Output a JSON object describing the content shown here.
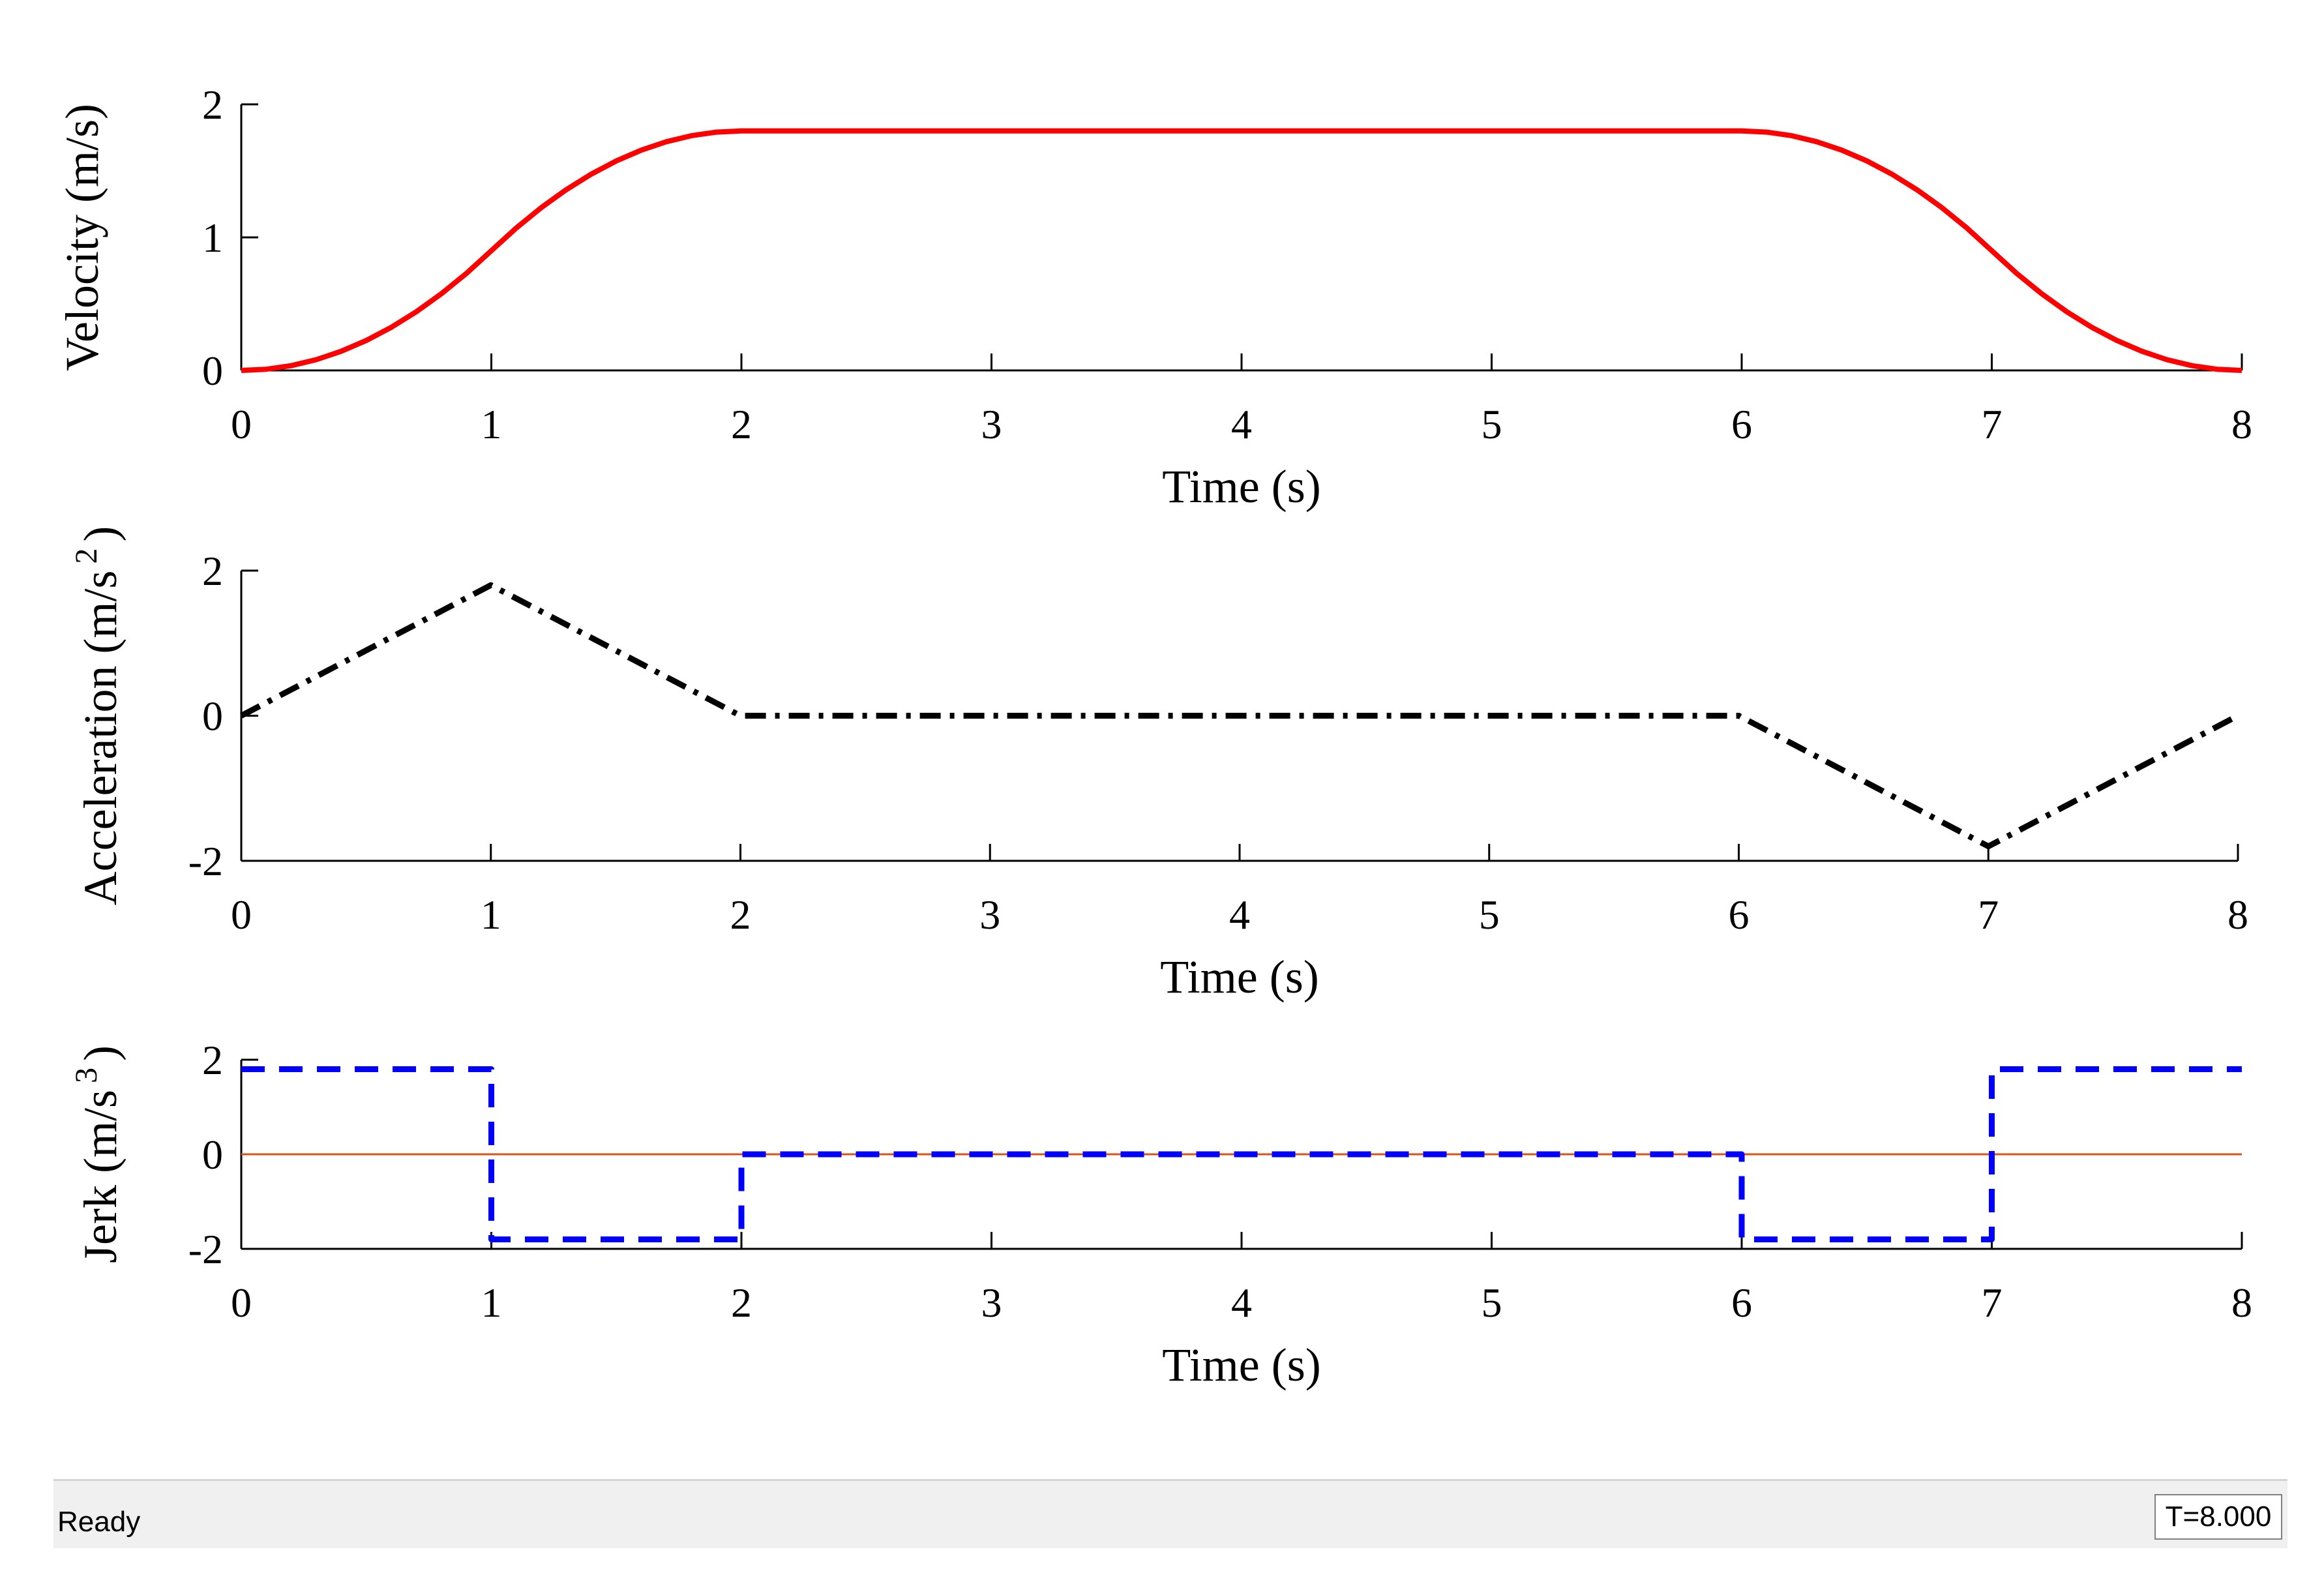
{
  "status_bar": {
    "text": "Ready",
    "time": "T=8.000"
  },
  "chart_data": [
    {
      "type": "line",
      "xlabel": "Time (s)",
      "ylabel": "Velocity (m/s)",
      "xlim": [
        0,
        8
      ],
      "ylim": [
        0,
        2
      ],
      "xticks": [
        0,
        1,
        2,
        3,
        4,
        5,
        6,
        7,
        8
      ],
      "yticks": [
        0,
        1,
        2
      ],
      "grid": false,
      "series": [
        {
          "color": "#ff0000",
          "style": "solid",
          "x": [
            0,
            0.1,
            0.2,
            0.3,
            0.4,
            0.5,
            0.6,
            0.7,
            0.8,
            0.9,
            1.0,
            1.1,
            1.2,
            1.3,
            1.4,
            1.5,
            1.6,
            1.7,
            1.8,
            1.9,
            2.0,
            6.0,
            6.1,
            6.2,
            6.3,
            6.4,
            6.5,
            6.6,
            6.7,
            6.8,
            6.9,
            7.0,
            7.1,
            7.2,
            7.3,
            7.4,
            7.5,
            7.6,
            7.7,
            7.8,
            7.9,
            8.0
          ],
          "y": [
            0,
            0.009,
            0.036,
            0.081,
            0.144,
            0.225,
            0.324,
            0.441,
            0.576,
            0.729,
            0.9,
            1.071,
            1.224,
            1.359,
            1.476,
            1.575,
            1.656,
            1.719,
            1.764,
            1.791,
            1.8,
            1.8,
            1.791,
            1.764,
            1.719,
            1.656,
            1.575,
            1.476,
            1.359,
            1.224,
            1.071,
            0.9,
            0.729,
            0.576,
            0.441,
            0.324,
            0.225,
            0.144,
            0.081,
            0.036,
            0.009,
            0
          ]
        }
      ]
    },
    {
      "type": "line",
      "xlabel": "Time (s)",
      "ylabel": "Acceleration (m/s",
      "ylabel_sup": "2",
      "ylabel_close": ")",
      "xlim": [
        0,
        8
      ],
      "ylim": [
        -2,
        2
      ],
      "xticks": [
        0,
        1,
        2,
        3,
        4,
        5,
        6,
        7,
        8
      ],
      "yticks": [
        -2,
        0,
        2
      ],
      "grid": false,
      "series": [
        {
          "color": "#000000",
          "style": "dashdot",
          "x": [
            0,
            1,
            2,
            6,
            7,
            8
          ],
          "y": [
            0,
            1.8,
            0,
            0,
            -1.8,
            0
          ]
        }
      ]
    },
    {
      "type": "line",
      "xlabel": "Time (s)",
      "ylabel": "Jerk (m/s",
      "ylabel_sup": "3",
      "ylabel_close": ")",
      "xlim": [
        0,
        8
      ],
      "ylim": [
        -2,
        2
      ],
      "xticks": [
        0,
        1,
        2,
        3,
        4,
        5,
        6,
        7,
        8
      ],
      "yticks": [
        -2,
        0,
        2
      ],
      "grid": false,
      "series": [
        {
          "color": "#d95319",
          "style": "solid",
          "x": [
            0,
            8
          ],
          "y": [
            0,
            0
          ]
        },
        {
          "color": "#0000ff",
          "style": "dashed",
          "x": [
            0,
            1,
            1,
            2,
            2,
            6,
            6,
            7,
            7,
            8
          ],
          "y": [
            1.8,
            1.8,
            -1.8,
            -1.8,
            0,
            0,
            -1.8,
            -1.8,
            1.8,
            1.8
          ]
        }
      ]
    }
  ]
}
